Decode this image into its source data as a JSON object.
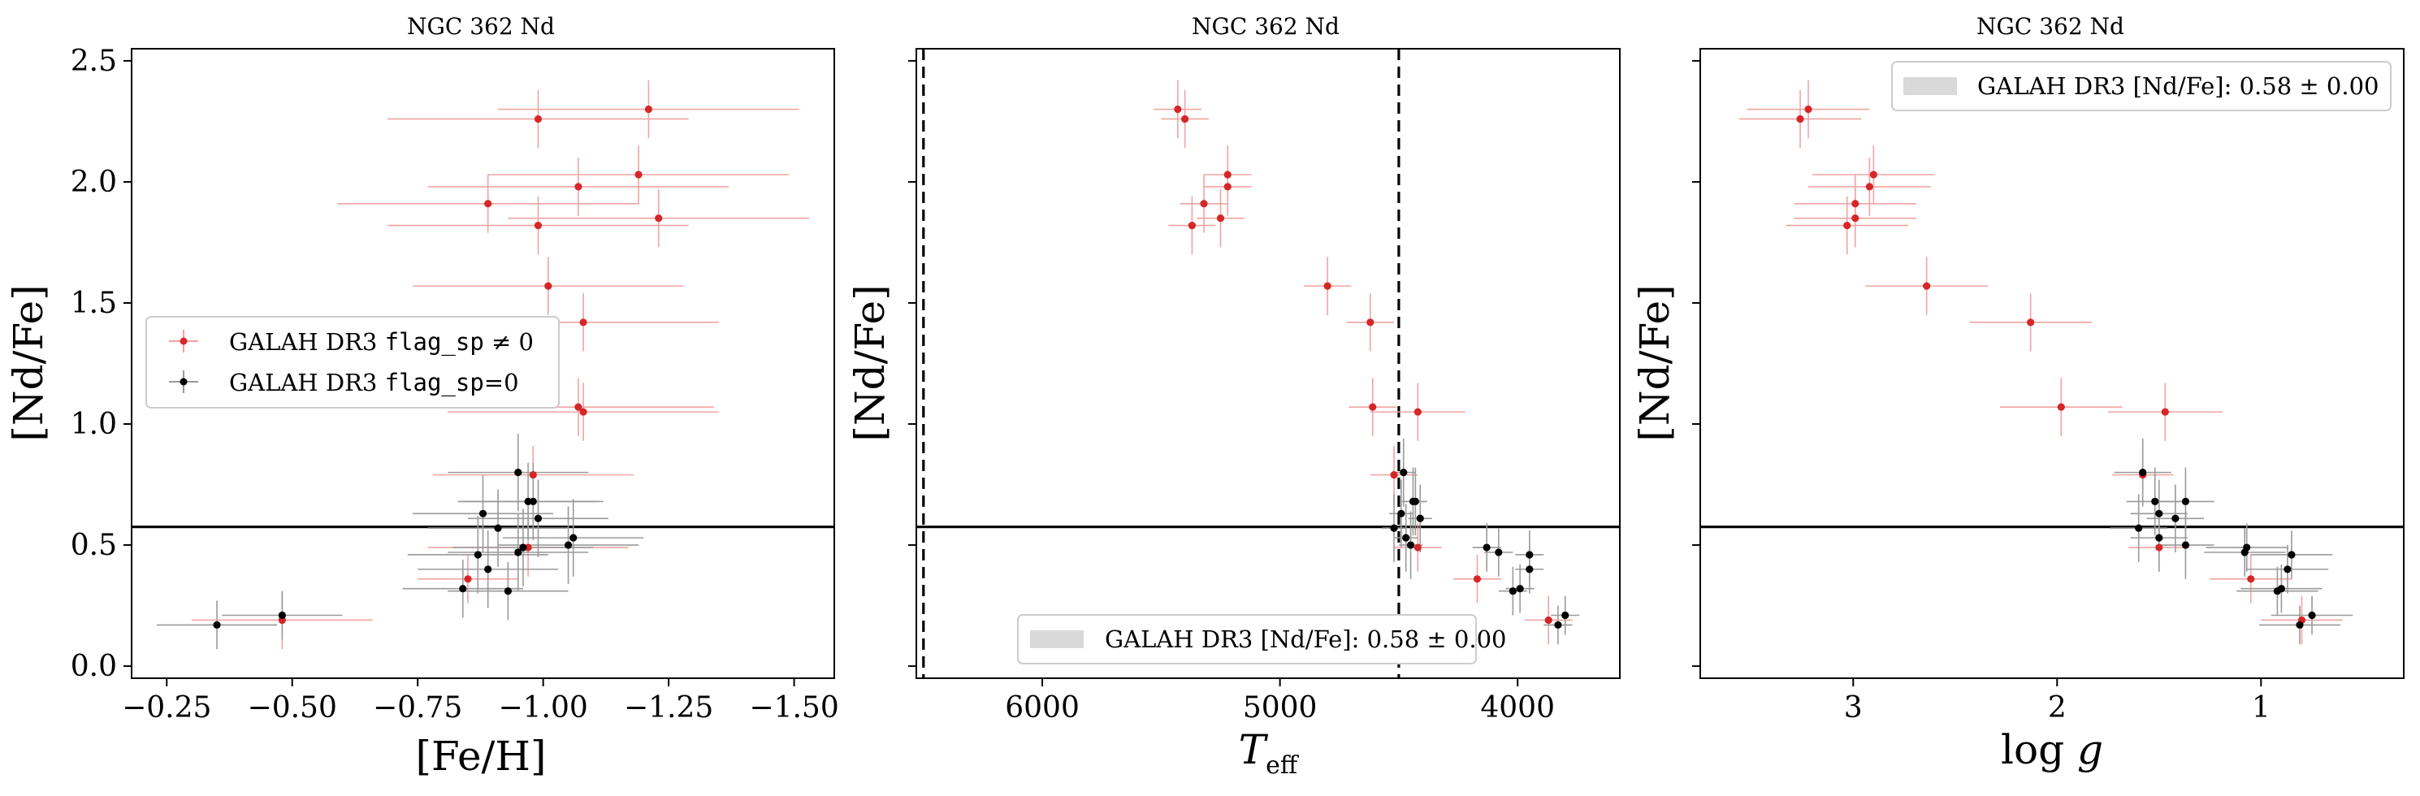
{
  "colors": {
    "red": "#d62728",
    "black": "#000000",
    "red_err": "#f2a3a3",
    "black_err": "#9a9a9a",
    "band": "#d9d9d9"
  },
  "chart_data": [
    {
      "type": "scatter",
      "title": "NGC 362 Nd",
      "xlabel": "[Fe/H]",
      "ylabel": "[Nd/Fe]",
      "xlim": [
        -0.18,
        -1.58
      ],
      "ylim": [
        -0.05,
        2.55
      ],
      "x_ticks": [
        -0.25,
        -0.5,
        -0.75,
        -1.0,
        -1.25,
        -1.5
      ],
      "x_tick_labels": [
        "−0.25",
        "−0.50",
        "−0.75",
        "−1.00",
        "−1.25",
        "−1.50"
      ],
      "y_ticks": [
        0.0,
        0.5,
        1.0,
        1.5,
        2.0,
        2.5
      ],
      "y_tick_labels": [
        "0.0",
        "0.5",
        "1.0",
        "1.5",
        "2.0",
        "2.5"
      ],
      "hline": 0.575,
      "legend": {
        "location": "center-left",
        "entries": [
          {
            "pre": "GALAH DR3 ",
            "code": "flag_sp",
            "post": " ≠ 0",
            "series": "red"
          },
          {
            "pre": "GALAH DR3 ",
            "code": "flag_sp",
            "post": "=0",
            "series": "black"
          }
        ]
      },
      "series": [
        {
          "name": "flag_sp != 0",
          "color": "red",
          "points": [
            {
              "x": -1.21,
              "y": 2.3,
              "xerr": 0.3,
              "yerr": 0.12
            },
            {
              "x": -0.99,
              "y": 2.26,
              "xerr": 0.3,
              "yerr": 0.12
            },
            {
              "x": -1.19,
              "y": 2.03,
              "xerr": 0.3,
              "yerr": 0.12
            },
            {
              "x": -1.07,
              "y": 1.98,
              "xerr": 0.3,
              "yerr": 0.12
            },
            {
              "x": -0.89,
              "y": 1.91,
              "xerr": 0.3,
              "yerr": 0.12
            },
            {
              "x": -1.23,
              "y": 1.85,
              "xerr": 0.3,
              "yerr": 0.12
            },
            {
              "x": -0.99,
              "y": 1.82,
              "xerr": 0.3,
              "yerr": 0.12
            },
            {
              "x": -1.01,
              "y": 1.57,
              "xerr": 0.27,
              "yerr": 0.12
            },
            {
              "x": -1.08,
              "y": 1.42,
              "xerr": 0.27,
              "yerr": 0.12
            },
            {
              "x": -1.07,
              "y": 1.07,
              "xerr": 0.27,
              "yerr": 0.12
            },
            {
              "x": -1.08,
              "y": 1.05,
              "xerr": 0.27,
              "yerr": 0.12
            },
            {
              "x": -0.98,
              "y": 0.79,
              "xerr": 0.2,
              "yerr": 0.12
            },
            {
              "x": -0.97,
              "y": 0.49,
              "xerr": 0.2,
              "yerr": 0.12
            },
            {
              "x": -0.85,
              "y": 0.36,
              "xerr": 0.1,
              "yerr": 0.1
            },
            {
              "x": -0.48,
              "y": 0.19,
              "xerr": 0.18,
              "yerr": 0.12
            }
          ]
        },
        {
          "name": "flag_sp = 0",
          "color": "black",
          "points": [
            {
              "x": -0.95,
              "y": 0.8,
              "xerr": 0.14,
              "yerr": 0.16
            },
            {
              "x": -0.97,
              "y": 0.68,
              "xerr": 0.14,
              "yerr": 0.16
            },
            {
              "x": -0.98,
              "y": 0.68,
              "xerr": 0.14,
              "yerr": 0.16
            },
            {
              "x": -0.88,
              "y": 0.63,
              "xerr": 0.14,
              "yerr": 0.16
            },
            {
              "x": -0.99,
              "y": 0.61,
              "xerr": 0.14,
              "yerr": 0.16
            },
            {
              "x": -0.91,
              "y": 0.57,
              "xerr": 0.14,
              "yerr": 0.16
            },
            {
              "x": -1.06,
              "y": 0.53,
              "xerr": 0.14,
              "yerr": 0.16
            },
            {
              "x": -1.05,
              "y": 0.5,
              "xerr": 0.14,
              "yerr": 0.16
            },
            {
              "x": -0.96,
              "y": 0.49,
              "xerr": 0.14,
              "yerr": 0.16
            },
            {
              "x": -0.95,
              "y": 0.47,
              "xerr": 0.14,
              "yerr": 0.16
            },
            {
              "x": -0.87,
              "y": 0.46,
              "xerr": 0.14,
              "yerr": 0.16
            },
            {
              "x": -0.89,
              "y": 0.4,
              "xerr": 0.14,
              "yerr": 0.16
            },
            {
              "x": -0.84,
              "y": 0.32,
              "xerr": 0.12,
              "yerr": 0.12
            },
            {
              "x": -0.93,
              "y": 0.31,
              "xerr": 0.12,
              "yerr": 0.12
            },
            {
              "x": -0.48,
              "y": 0.21,
              "xerr": 0.12,
              "yerr": 0.1
            },
            {
              "x": -0.35,
              "y": 0.17,
              "xerr": 0.12,
              "yerr": 0.1
            }
          ]
        }
      ]
    },
    {
      "type": "scatter",
      "title": "NGC 362 Nd",
      "xlabel": "T_eff",
      "ylabel": "[Nd/Fe]",
      "xlim": [
        6530,
        3570
      ],
      "ylim": [
        -0.05,
        2.55
      ],
      "x_ticks": [
        6000,
        5000,
        4000
      ],
      "x_tick_labels": [
        "6000",
        "5000",
        "4000"
      ],
      "vlines": [
        6500,
        4500
      ],
      "hline": 0.575,
      "band_legend": {
        "location": "bottom-center",
        "label": "GALAH DR3 [Nd/Fe]: 0.58 ± 0.00"
      },
      "series": [
        {
          "name": "flag_sp != 0",
          "color": "red",
          "points": [
            {
              "x": 5430,
              "y": 2.3,
              "xerr": 100,
              "yerr": 0.12
            },
            {
              "x": 5400,
              "y": 2.26,
              "xerr": 100,
              "yerr": 0.12
            },
            {
              "x": 5220,
              "y": 2.03,
              "xerr": 100,
              "yerr": 0.12
            },
            {
              "x": 5220,
              "y": 1.98,
              "xerr": 100,
              "yerr": 0.12
            },
            {
              "x": 5320,
              "y": 1.91,
              "xerr": 100,
              "yerr": 0.12
            },
            {
              "x": 5250,
              "y": 1.85,
              "xerr": 100,
              "yerr": 0.12
            },
            {
              "x": 5370,
              "y": 1.82,
              "xerr": 100,
              "yerr": 0.12
            },
            {
              "x": 4800,
              "y": 1.57,
              "xerr": 100,
              "yerr": 0.12
            },
            {
              "x": 4620,
              "y": 1.42,
              "xerr": 100,
              "yerr": 0.12
            },
            {
              "x": 4610,
              "y": 1.07,
              "xerr": 100,
              "yerr": 0.12
            },
            {
              "x": 4420,
              "y": 1.05,
              "xerr": 200,
              "yerr": 0.12
            },
            {
              "x": 4520,
              "y": 0.79,
              "xerr": 100,
              "yerr": 0.12
            },
            {
              "x": 4420,
              "y": 0.49,
              "xerr": 100,
              "yerr": 0.1
            },
            {
              "x": 4170,
              "y": 0.36,
              "xerr": 100,
              "yerr": 0.1
            },
            {
              "x": 3870,
              "y": 0.19,
              "xerr": 100,
              "yerr": 0.1
            }
          ]
        },
        {
          "name": "flag_sp = 0",
          "color": "black",
          "points": [
            {
              "x": 4480,
              "y": 0.8,
              "xerr": 50,
              "yerr": 0.14
            },
            {
              "x": 4430,
              "y": 0.68,
              "xerr": 50,
              "yerr": 0.14
            },
            {
              "x": 4440,
              "y": 0.68,
              "xerr": 50,
              "yerr": 0.14
            },
            {
              "x": 4490,
              "y": 0.63,
              "xerr": 50,
              "yerr": 0.14
            },
            {
              "x": 4410,
              "y": 0.61,
              "xerr": 50,
              "yerr": 0.14
            },
            {
              "x": 4520,
              "y": 0.57,
              "xerr": 50,
              "yerr": 0.14
            },
            {
              "x": 4470,
              "y": 0.53,
              "xerr": 50,
              "yerr": 0.14
            },
            {
              "x": 4450,
              "y": 0.5,
              "xerr": 50,
              "yerr": 0.14
            },
            {
              "x": 4130,
              "y": 0.49,
              "xerr": 60,
              "yerr": 0.1
            },
            {
              "x": 4080,
              "y": 0.47,
              "xerr": 60,
              "yerr": 0.1
            },
            {
              "x": 3950,
              "y": 0.46,
              "xerr": 60,
              "yerr": 0.1
            },
            {
              "x": 3950,
              "y": 0.4,
              "xerr": 60,
              "yerr": 0.1
            },
            {
              "x": 3990,
              "y": 0.32,
              "xerr": 60,
              "yerr": 0.1
            },
            {
              "x": 4020,
              "y": 0.31,
              "xerr": 60,
              "yerr": 0.1
            },
            {
              "x": 3800,
              "y": 0.21,
              "xerr": 60,
              "yerr": 0.08
            },
            {
              "x": 3830,
              "y": 0.17,
              "xerr": 60,
              "yerr": 0.08
            }
          ]
        }
      ]
    },
    {
      "type": "scatter",
      "title": "NGC 362 Nd",
      "xlabel": "log g",
      "ylabel": "[Nd/Fe]",
      "xlim": [
        3.75,
        0.3
      ],
      "ylim": [
        -0.05,
        2.55
      ],
      "x_ticks": [
        3,
        2,
        1
      ],
      "x_tick_labels": [
        "3",
        "2",
        "1"
      ],
      "hline": 0.575,
      "band_legend": {
        "location": "top-right",
        "label": "GALAH DR3 [Nd/Fe]: 0.58 ± 0.00"
      },
      "series": [
        {
          "name": "flag_sp != 0",
          "color": "red",
          "points": [
            {
              "x": 3.22,
              "y": 2.3,
              "xerr": 0.3,
              "yerr": 0.12
            },
            {
              "x": 3.26,
              "y": 2.26,
              "xerr": 0.3,
              "yerr": 0.12
            },
            {
              "x": 2.9,
              "y": 2.03,
              "xerr": 0.3,
              "yerr": 0.12
            },
            {
              "x": 2.92,
              "y": 1.98,
              "xerr": 0.3,
              "yerr": 0.12
            },
            {
              "x": 2.99,
              "y": 1.91,
              "xerr": 0.3,
              "yerr": 0.12
            },
            {
              "x": 2.99,
              "y": 1.85,
              "xerr": 0.3,
              "yerr": 0.12
            },
            {
              "x": 3.03,
              "y": 1.82,
              "xerr": 0.3,
              "yerr": 0.12
            },
            {
              "x": 2.64,
              "y": 1.57,
              "xerr": 0.3,
              "yerr": 0.12
            },
            {
              "x": 2.13,
              "y": 1.42,
              "xerr": 0.3,
              "yerr": 0.12
            },
            {
              "x": 1.98,
              "y": 1.07,
              "xerr": 0.3,
              "yerr": 0.12
            },
            {
              "x": 1.47,
              "y": 1.05,
              "xerr": 0.28,
              "yerr": 0.12
            },
            {
              "x": 1.58,
              "y": 0.79,
              "xerr": 0.15,
              "yerr": 0.12
            },
            {
              "x": 1.5,
              "y": 0.49,
              "xerr": 0.15,
              "yerr": 0.1
            },
            {
              "x": 1.05,
              "y": 0.36,
              "xerr": 0.2,
              "yerr": 0.1
            },
            {
              "x": 0.8,
              "y": 0.19,
              "xerr": 0.2,
              "yerr": 0.1
            }
          ]
        },
        {
          "name": "flag_sp = 0",
          "color": "black",
          "points": [
            {
              "x": 1.58,
              "y": 0.8,
              "xerr": 0.14,
              "yerr": 0.14
            },
            {
              "x": 1.52,
              "y": 0.68,
              "xerr": 0.14,
              "yerr": 0.14
            },
            {
              "x": 1.37,
              "y": 0.68,
              "xerr": 0.14,
              "yerr": 0.14
            },
            {
              "x": 1.5,
              "y": 0.63,
              "xerr": 0.14,
              "yerr": 0.14
            },
            {
              "x": 1.42,
              "y": 0.61,
              "xerr": 0.14,
              "yerr": 0.14
            },
            {
              "x": 1.6,
              "y": 0.57,
              "xerr": 0.14,
              "yerr": 0.14
            },
            {
              "x": 1.5,
              "y": 0.53,
              "xerr": 0.14,
              "yerr": 0.14
            },
            {
              "x": 1.37,
              "y": 0.5,
              "xerr": 0.14,
              "yerr": 0.14
            },
            {
              "x": 1.07,
              "y": 0.49,
              "xerr": 0.2,
              "yerr": 0.1
            },
            {
              "x": 1.08,
              "y": 0.47,
              "xerr": 0.2,
              "yerr": 0.1
            },
            {
              "x": 0.85,
              "y": 0.46,
              "xerr": 0.2,
              "yerr": 0.1
            },
            {
              "x": 0.87,
              "y": 0.4,
              "xerr": 0.2,
              "yerr": 0.1
            },
            {
              "x": 0.9,
              "y": 0.32,
              "xerr": 0.2,
              "yerr": 0.1
            },
            {
              "x": 0.92,
              "y": 0.31,
              "xerr": 0.2,
              "yerr": 0.1
            },
            {
              "x": 0.75,
              "y": 0.21,
              "xerr": 0.2,
              "yerr": 0.08
            },
            {
              "x": 0.81,
              "y": 0.17,
              "xerr": 0.2,
              "yerr": 0.08
            }
          ]
        }
      ]
    }
  ]
}
